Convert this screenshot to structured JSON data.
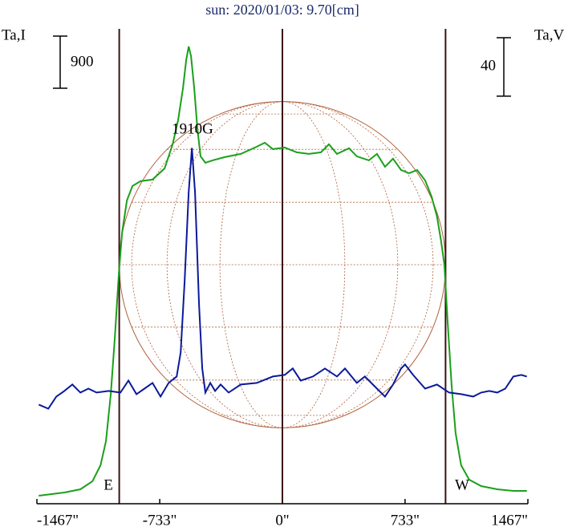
{
  "chart_data": {
    "type": "line",
    "title": "sun: 2020/01/03: 9.70[cm]",
    "y_label": "Ta,I",
    "y2_label": "Ta,V",
    "i_scale": 900,
    "v_scale": 40,
    "annotation": "1910G",
    "east_label": "E",
    "west_label": "W",
    "limb_radius": 975,
    "xlim": [
      -1467,
      1467
    ],
    "xticks": [
      {
        "value": -1467,
        "label": "-1467\""
      },
      {
        "value": -733,
        "label": "-733\""
      },
      {
        "value": 0,
        "label": "0\""
      },
      {
        "value": 733,
        "label": "733\""
      },
      {
        "value": 1467,
        "label": "1467\""
      }
    ],
    "ylim": [
      0,
      8280
    ],
    "y2lim": [
      -76,
      252
    ],
    "series": [
      {
        "name": "Ta,I",
        "color": "#1aa01a",
        "x": [
          -1456,
          -1303,
          -1207,
          -1135,
          -1087,
          -1054,
          -1025,
          -1001,
          -977,
          -958,
          -929,
          -896,
          -848,
          -776,
          -704,
          -656,
          -623,
          -594,
          -575,
          -560,
          -546,
          -527,
          -508,
          -489,
          -460,
          -417,
          -345,
          -249,
          -153,
          -105,
          -57,
          14,
          86,
          158,
          230,
          278,
          326,
          398,
          445,
          517,
          565,
          613,
          661,
          709,
          757,
          805,
          853,
          891,
          924,
          948,
          968,
          987,
          1011,
          1035,
          1068,
          1116,
          1188,
          1284,
          1380,
          1461
        ],
        "values": [
          139,
          194,
          249,
          388,
          665,
          1080,
          1911,
          2881,
          3989,
          4681,
          5235,
          5485,
          5568,
          5595,
          5789,
          6205,
          6620,
          7174,
          7659,
          7894,
          7728,
          7174,
          6482,
          5997,
          5886,
          5928,
          5983,
          6039,
          6163,
          6232,
          6122,
          6149,
          6066,
          6039,
          6066,
          6205,
          6039,
          6136,
          5997,
          5928,
          6039,
          5817,
          5956,
          5762,
          5706,
          5762,
          5582,
          5305,
          4958,
          4543,
          4127,
          3158,
          2050,
          1219,
          665,
          416,
          305,
          249,
          222,
          222
        ]
      },
      {
        "name": "Ta,V",
        "color": "#0a1a9a",
        "axis": "y2",
        "x": [
          -1456,
          -1399,
          -1351,
          -1303,
          -1255,
          -1207,
          -1159,
          -1111,
          -1039,
          -968,
          -920,
          -872,
          -824,
          -776,
          -728,
          -680,
          -632,
          -608,
          -584,
          -560,
          -541,
          -522,
          -498,
          -479,
          -460,
          -431,
          -402,
          -369,
          -321,
          -249,
          -153,
          -57,
          14,
          62,
          110,
          182,
          254,
          326,
          374,
          445,
          493,
          565,
          613,
          661,
          709,
          733,
          781,
          853,
          924,
          996,
          1068,
          1140,
          1188,
          1236,
          1284,
          1332,
          1380,
          1427,
          1461
        ],
        "values": [
          -8.2,
          -11,
          -2.7,
          1.1,
          5.5,
          0,
          2.7,
          0,
          1.1,
          0,
          8.2,
          -1.1,
          2.7,
          6.6,
          -2.7,
          6.6,
          11,
          27.4,
          76.8,
          137.1,
          167.3,
          137.1,
          60.3,
          16.5,
          0,
          6.6,
          1.1,
          5.5,
          0,
          5.5,
          6.6,
          11,
          12.1,
          16.5,
          8.2,
          11,
          16.5,
          11,
          16.5,
          6.6,
          11,
          2.7,
          -2.7,
          5.5,
          16.5,
          19.2,
          12.1,
          2.7,
          5.5,
          0,
          -1.1,
          -2.7,
          0,
          1.1,
          0,
          2.7,
          11,
          12.1,
          11
        ]
      }
    ]
  }
}
